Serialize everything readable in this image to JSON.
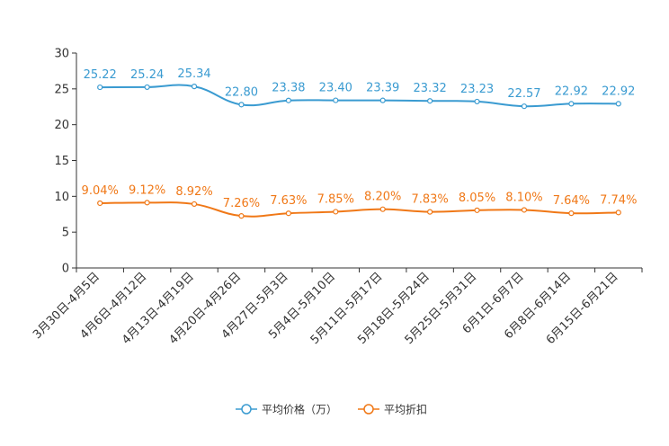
{
  "chart_data": {
    "type": "line",
    "title": "",
    "xlabel": "",
    "ylabel": "",
    "ylim": [
      0,
      30
    ],
    "yticks": [
      0,
      5,
      10,
      15,
      20,
      25,
      30
    ],
    "grid": false,
    "legend_position": "bottom",
    "categories": [
      "3月30日-4月5日",
      "4月6日-4月12日",
      "4月13日-4月19日",
      "4月20日-4月26日",
      "4月27日-5月3日",
      "5月4日-5月10日",
      "5月11日-5月17日",
      "5月18日-5月24日",
      "5月25日-5月31日",
      "6月1日-6月7日",
      "6月8日-6月14日",
      "6月15日-6月21日"
    ],
    "series": [
      {
        "name": "平均价格（万）",
        "color": "#3a9bd1",
        "values": [
          25.22,
          25.24,
          25.34,
          22.8,
          23.38,
          23.4,
          23.39,
          23.32,
          23.23,
          22.57,
          22.92,
          22.92
        ],
        "labels": [
          "25.22",
          "25.24",
          "25.34",
          "22.80",
          "23.38",
          "23.40",
          "23.39",
          "23.32",
          "23.23",
          "22.57",
          "22.92",
          "22.92"
        ]
      },
      {
        "name": "平均折扣",
        "color": "#f07817",
        "values": [
          9.04,
          9.12,
          8.92,
          7.26,
          7.63,
          7.85,
          8.2,
          7.83,
          8.05,
          8.1,
          7.64,
          7.74
        ],
        "labels": [
          "9.04%",
          "9.12%",
          "8.92%",
          "7.26%",
          "7.63%",
          "7.85%",
          "8.20%",
          "7.83%",
          "8.05%",
          "8.10%",
          "7.64%",
          "7.74%"
        ]
      }
    ]
  }
}
